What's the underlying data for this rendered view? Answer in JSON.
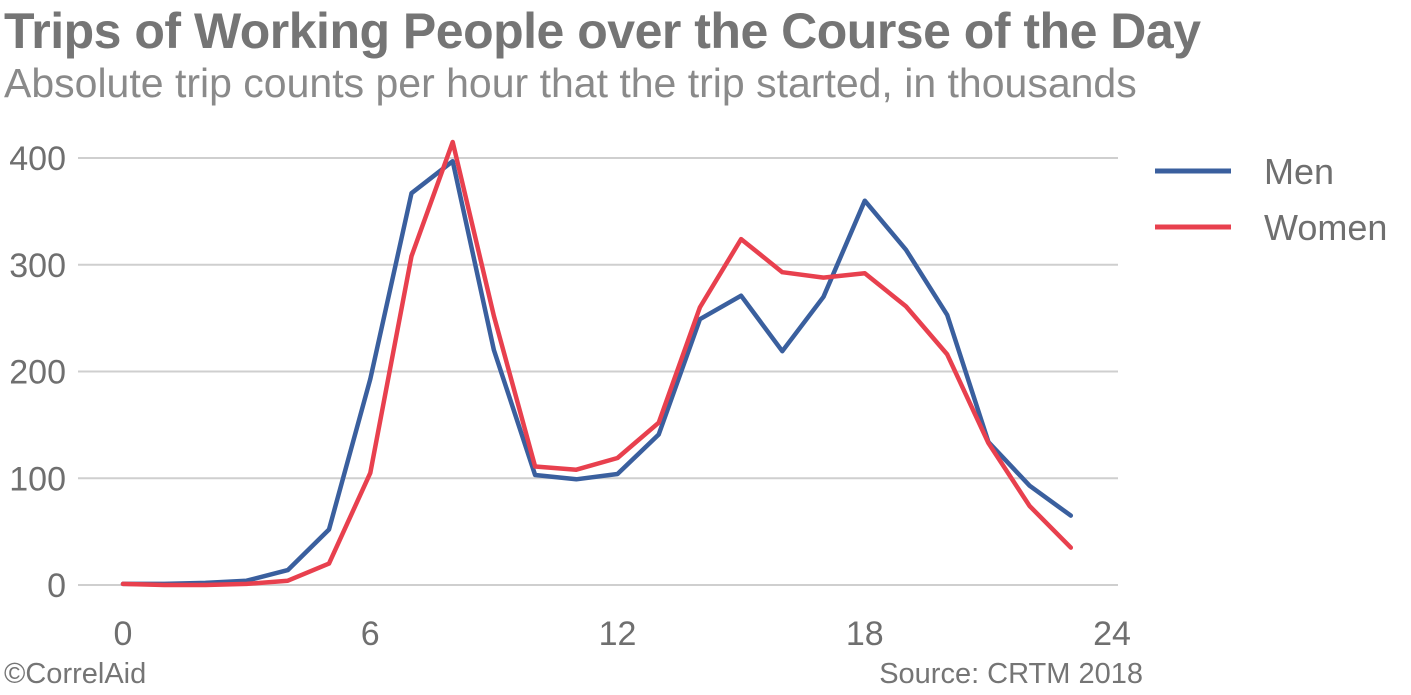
{
  "chart_data": {
    "type": "line",
    "title": "Trips of Working People over the Course of the Day",
    "subtitle": "Absolute trip counts per hour that the trip started, in thousands",
    "xlabel": "",
    "ylabel": "",
    "xlim": [
      0,
      24
    ],
    "ylim": [
      0,
      400
    ],
    "x_ticks": [
      0,
      6,
      12,
      18,
      24
    ],
    "y_ticks": [
      0,
      100,
      200,
      300,
      400
    ],
    "grid": "horizontal",
    "legend_position": "top-right",
    "x": [
      0,
      1,
      2,
      3,
      4,
      5,
      6,
      7,
      8,
      9,
      10,
      11,
      12,
      13,
      14,
      15,
      16,
      17,
      18,
      19,
      20,
      21,
      22,
      23
    ],
    "series": [
      {
        "name": "Men",
        "color": "#3A5F9E",
        "values": [
          1,
          1,
          2,
          4,
          14,
          52,
          193,
          367,
          397,
          220,
          103,
          99,
          104,
          141,
          249,
          271,
          219,
          270,
          360,
          314,
          253,
          134,
          93,
          65
        ]
      },
      {
        "name": "Women",
        "color": "#E8404E",
        "values": [
          1,
          0,
          0,
          1,
          4,
          20,
          105,
          308,
          415,
          252,
          111,
          108,
          119,
          152,
          260,
          324,
          293,
          288,
          292,
          261,
          216,
          133,
          74,
          35
        ]
      }
    ]
  },
  "footer": {
    "credit": "©CorrelAid",
    "source": "Source: CRTM 2018"
  }
}
